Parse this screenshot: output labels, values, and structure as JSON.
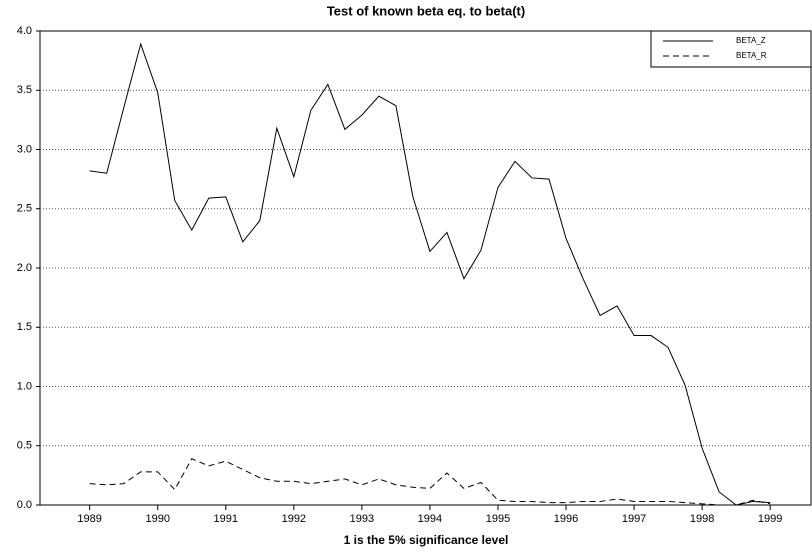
{
  "chart_data": {
    "type": "line",
    "title": "Test of known beta eq. to beta(t)",
    "x_label": "1 is the 5% significance level",
    "x": [
      1989,
      1989.25,
      1989.5,
      1989.75,
      1990,
      1990.25,
      1990.5,
      1990.75,
      1991,
      1991.25,
      1991.5,
      1991.75,
      1992,
      1992.25,
      1992.5,
      1992.75,
      1993,
      1993.25,
      1993.5,
      1993.75,
      1994,
      1994.25,
      1994.5,
      1994.75,
      1995,
      1995.25,
      1995.5,
      1995.75,
      1996,
      1996.25,
      1996.5,
      1996.75,
      1997,
      1997.25,
      1997.5,
      1997.75,
      1998,
      1998.25,
      1998.5,
      1998.75,
      1999
    ],
    "series": [
      {
        "name": "BETA_Z",
        "color": "#000000",
        "dash": "none",
        "values": [
          2.82,
          2.8,
          3.35,
          3.89,
          3.48,
          2.57,
          2.32,
          2.59,
          2.6,
          2.22,
          2.4,
          3.18,
          2.77,
          3.33,
          3.55,
          3.17,
          3.29,
          3.45,
          3.37,
          2.6,
          2.14,
          2.3,
          1.91,
          2.15,
          2.68,
          2.9,
          2.76,
          2.75,
          2.25,
          1.91,
          1.6,
          1.68,
          1.43,
          1.43,
          1.33,
          1.01,
          0.48,
          0.11,
          0.0,
          0.03,
          0.02
        ]
      },
      {
        "name": "BETA_R",
        "color": "#000000",
        "dash": "6,4",
        "values": [
          0.18,
          0.17,
          0.18,
          0.28,
          0.28,
          0.13,
          0.39,
          0.33,
          0.37,
          0.3,
          0.23,
          0.2,
          0.2,
          0.18,
          0.2,
          0.22,
          0.17,
          0.22,
          0.17,
          0.15,
          0.14,
          0.27,
          0.14,
          0.19,
          0.04,
          0.03,
          0.03,
          0.02,
          0.02,
          0.03,
          0.03,
          0.05,
          0.03,
          0.03,
          0.03,
          0.02,
          0.01,
          0.0,
          0.0,
          0.04,
          0.01
        ]
      }
    ],
    "xlim": [
      1988.27,
      1999.6
    ],
    "xticks": [
      1989,
      1990,
      1991,
      1992,
      1993,
      1994,
      1995,
      1996,
      1997,
      1998,
      1999
    ],
    "ylim": [
      0,
      4
    ],
    "yticks": [
      {
        "value": 0,
        "label": "0.0"
      },
      0.5,
      {
        "value": 1,
        "label": "1.0"
      },
      1.5,
      {
        "value": 2,
        "label": "2.0"
      },
      2.5,
      {
        "value": 3,
        "label": "3.0"
      },
      3.5,
      {
        "value": 4,
        "label": "4.0"
      }
    ],
    "grid": true,
    "legend": "upper right"
  }
}
